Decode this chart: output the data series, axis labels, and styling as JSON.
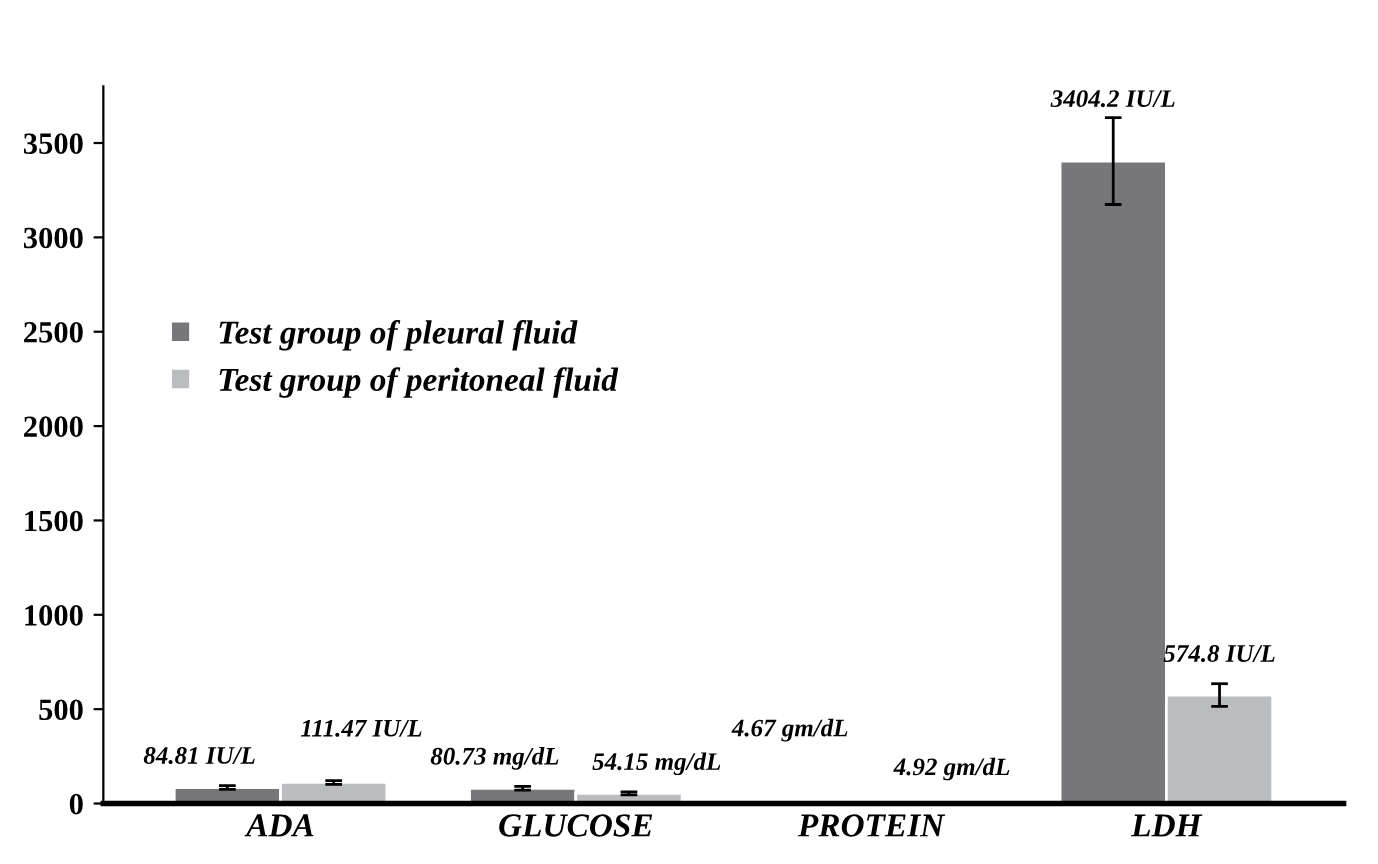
{
  "chart_data": {
    "type": "bar",
    "categories": [
      "ADA",
      "GLUCOSE",
      "PROTEIN",
      "LDH"
    ],
    "series": [
      {
        "name": "Test group of pleural fluid",
        "color": "#77777b",
        "values": [
          84.81,
          80.73,
          4.67,
          3404.2
        ],
        "errors": [
          10,
          10,
          null,
          230
        ],
        "value_labels": [
          "84.81 IU/L",
          "80.73 mg/dL",
          "4.67 gm/dL",
          "3404.2 IU/L"
        ]
      },
      {
        "name": "Test group of peritoneal fluid",
        "color": "#bbbcc0",
        "values": [
          111.47,
          54.15,
          4.92,
          574.8
        ],
        "errors": [
          10,
          8,
          null,
          60
        ],
        "value_labels": [
          "111.47 IU/L",
          "54.15 mg/dL",
          "4.92 gm/dL",
          "574.8 IU/L"
        ]
      }
    ],
    "ylim": [
      0,
      3800
    ],
    "yticks": [
      0,
      500,
      1000,
      1500,
      2000,
      2500,
      3000,
      3500
    ],
    "grid": false,
    "legend": "left"
  }
}
